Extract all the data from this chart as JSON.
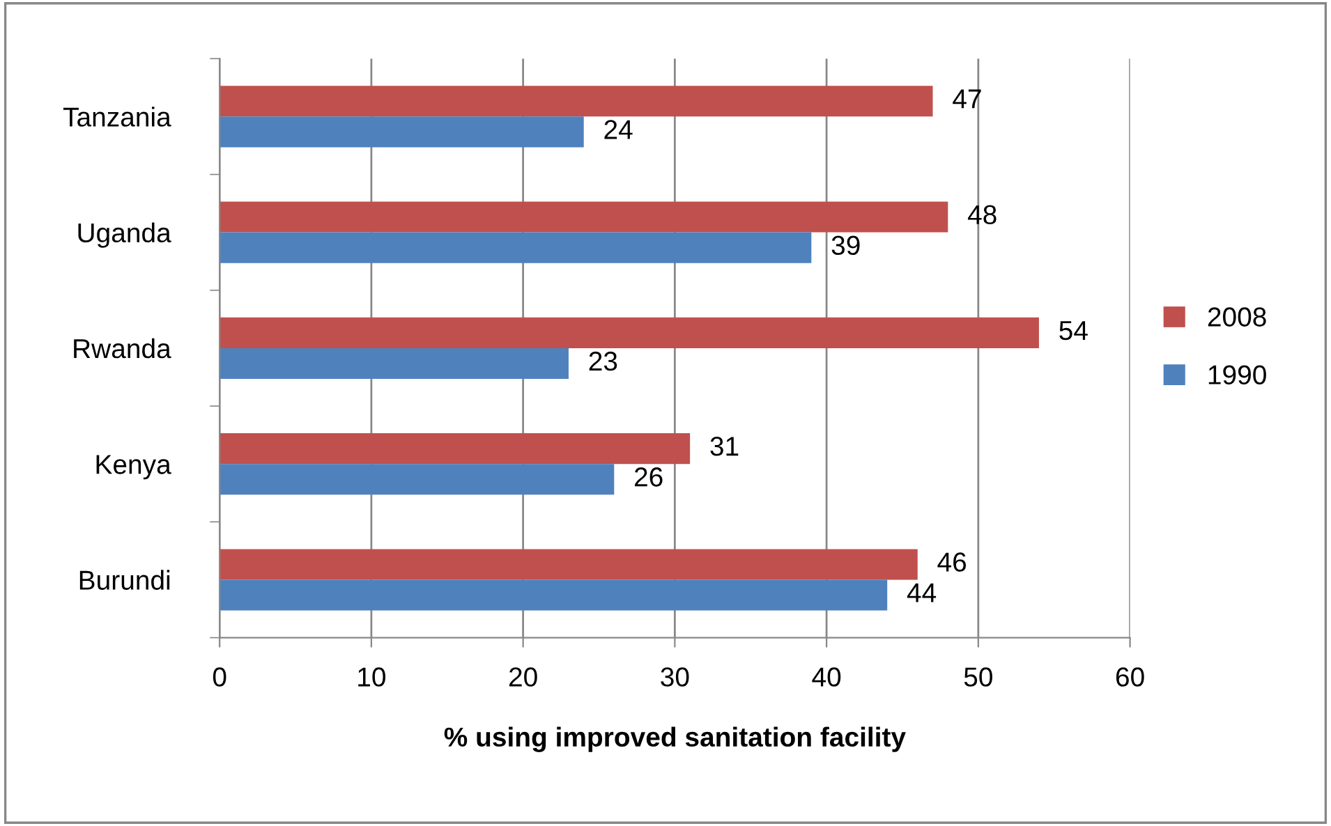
{
  "chart_data": {
    "type": "bar",
    "orientation": "horizontal",
    "xlabel": "% using improved sanitation facility",
    "categories": [
      "Tanzania",
      "Uganda",
      "Rwanda",
      "Kenya",
      "Burundi"
    ],
    "series": [
      {
        "name": "2008",
        "color": "#c0504d",
        "values": [
          47,
          48,
          54,
          31,
          46
        ]
      },
      {
        "name": "1990",
        "color": "#4f81bd",
        "values": [
          24,
          39,
          23,
          26,
          44
        ]
      }
    ],
    "xlim": [
      0,
      60
    ],
    "xticks": [
      0,
      10,
      20,
      30,
      40,
      50,
      60
    ],
    "grid": "x",
    "legend": "right",
    "data_labels": true
  }
}
